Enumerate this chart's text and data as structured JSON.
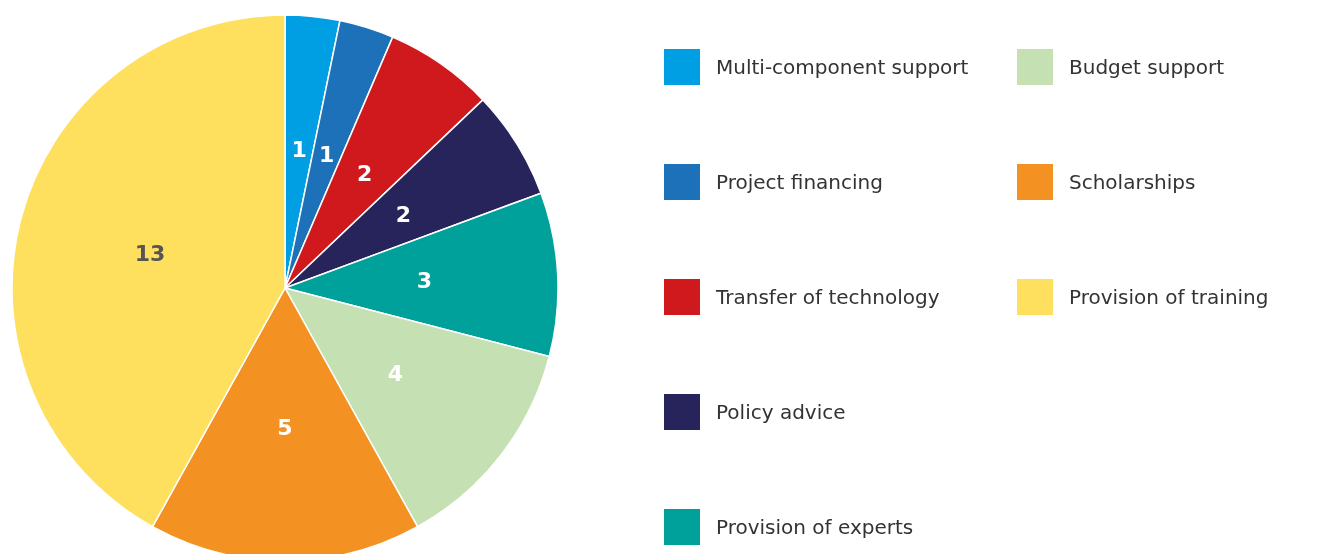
{
  "chart_data": {
    "type": "pie",
    "categories": [
      "Multi-component support",
      "Project financing",
      "Transfer of technology",
      "Policy advice",
      "Provision of experts",
      "Budget support",
      "Scholarships",
      "Provision of training"
    ],
    "values": [
      1,
      1,
      2,
      2,
      3,
      4,
      5,
      13
    ],
    "colors": [
      "#009fe3",
      "#1d71b8",
      "#d0191d",
      "#27235b",
      "#00a19a",
      "#c5e1b4",
      "#f39222",
      "#fedf5e"
    ],
    "data_labels": true,
    "legend": "right"
  }
}
